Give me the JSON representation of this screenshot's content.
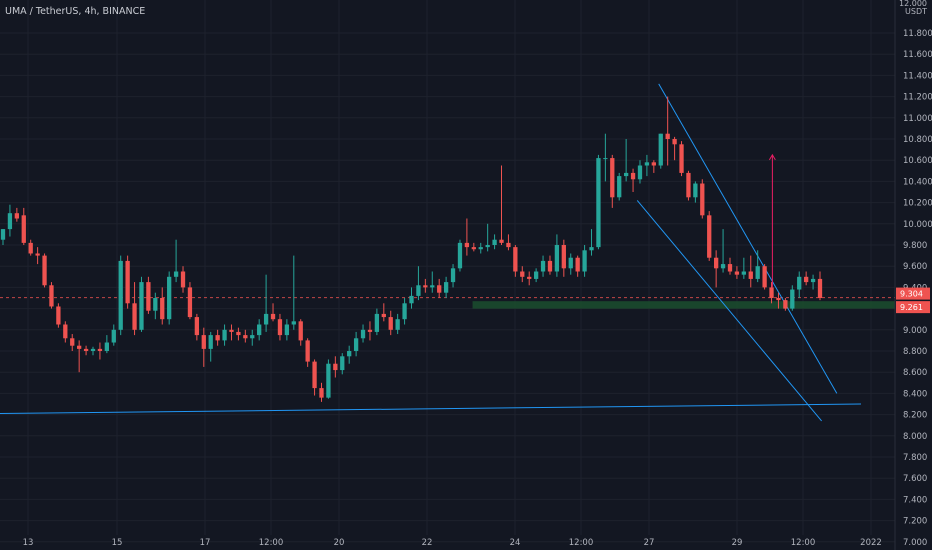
{
  "header": {
    "title": "UMA / TetherUS, 4h, BINANCE",
    "currency": "USDT",
    "top_price": "12.000"
  },
  "colors": {
    "background": "#131722",
    "up": "#26a69a",
    "down": "#ef5350",
    "grid": "#1e222d",
    "trendline": "#2196f3",
    "support_zone": "#1b4d2e",
    "arrow": "#e91e63"
  },
  "chart_data": {
    "type": "candlestick",
    "title": "UMA / TetherUS, 4h, BINANCE",
    "xlabel": "",
    "ylabel": "USDT",
    "ylim": [
      7.0,
      12.0
    ],
    "grid": true,
    "y_ticks": [
      "11.800",
      "11.600",
      "11.400",
      "11.200",
      "11.000",
      "10.800",
      "10.600",
      "10.400",
      "10.200",
      "10.000",
      "9.800",
      "9.600",
      "9.400",
      "9.200",
      "9.000",
      "8.800",
      "8.600",
      "8.400",
      "8.200",
      "8.000",
      "7.800",
      "7.600",
      "7.400",
      "7.200",
      "7.000"
    ],
    "x_ticks": [
      "13",
      "15",
      "17",
      "12:00",
      "20",
      "22",
      "24",
      "12:00",
      "27",
      "29",
      "12:00",
      "2022"
    ],
    "price_labels": [
      {
        "text": "9.304",
        "value": 9.304,
        "color": "#ef5350"
      },
      {
        "text": "9.261",
        "value": 9.261,
        "color": "#ef5350"
      }
    ],
    "candles": [
      [
        9.85,
        9.95,
        9.8,
        9.95
      ],
      [
        9.95,
        10.18,
        9.88,
        10.1
      ],
      [
        10.1,
        10.15,
        10.02,
        10.05
      ],
      [
        10.08,
        10.15,
        9.8,
        9.82
      ],
      [
        9.82,
        9.85,
        9.7,
        9.72
      ],
      [
        9.72,
        9.78,
        9.62,
        9.7
      ],
      [
        9.7,
        9.72,
        9.4,
        9.42
      ],
      [
        9.42,
        9.45,
        9.2,
        9.22
      ],
      [
        9.22,
        9.25,
        9.02,
        9.05
      ],
      [
        9.05,
        9.08,
        8.88,
        8.92
      ],
      [
        8.92,
        8.96,
        8.8,
        8.85
      ],
      [
        8.85,
        8.9,
        8.6,
        8.82
      ],
      [
        8.82,
        8.85,
        8.76,
        8.8
      ],
      [
        8.8,
        8.84,
        8.76,
        8.82
      ],
      [
        8.82,
        8.88,
        8.72,
        8.8
      ],
      [
        8.8,
        8.95,
        8.78,
        8.88
      ],
      [
        8.88,
        9.05,
        8.85,
        9.0
      ],
      [
        9.0,
        9.7,
        8.95,
        9.65
      ],
      [
        9.65,
        9.7,
        9.2,
        9.25
      ],
      [
        9.25,
        9.45,
        8.95,
        9.0
      ],
      [
        9.0,
        9.5,
        8.98,
        9.45
      ],
      [
        9.45,
        9.5,
        9.15,
        9.18
      ],
      [
        9.18,
        9.35,
        9.1,
        9.3
      ],
      [
        9.3,
        9.4,
        9.05,
        9.1
      ],
      [
        9.1,
        9.55,
        9.05,
        9.5
      ],
      [
        9.5,
        9.85,
        9.45,
        9.55
      ],
      [
        9.55,
        9.6,
        9.35,
        9.4
      ],
      [
        9.4,
        9.45,
        9.1,
        9.12
      ],
      [
        9.12,
        9.15,
        8.9,
        8.95
      ],
      [
        8.95,
        9.02,
        8.65,
        8.82
      ],
      [
        8.82,
        8.98,
        8.7,
        8.95
      ],
      [
        8.95,
        9.0,
        8.85,
        8.9
      ],
      [
        8.9,
        9.05,
        8.85,
        9.0
      ],
      [
        9.0,
        9.05,
        8.9,
        8.98
      ],
      [
        8.98,
        9.02,
        8.9,
        8.95
      ],
      [
        8.95,
        9.0,
        8.88,
        8.92
      ],
      [
        8.92,
        9.0,
        8.85,
        8.95
      ],
      [
        8.95,
        9.1,
        8.9,
        9.05
      ],
      [
        9.05,
        9.52,
        8.98,
        9.15
      ],
      [
        9.15,
        9.25,
        9.08,
        9.1
      ],
      [
        9.1,
        9.15,
        8.9,
        8.95
      ],
      [
        8.95,
        9.1,
        8.9,
        9.05
      ],
      [
        9.05,
        9.7,
        9.0,
        9.08
      ],
      [
        9.08,
        9.1,
        8.85,
        8.9
      ],
      [
        8.9,
        8.92,
        8.65,
        8.7
      ],
      [
        8.7,
        8.72,
        8.38,
        8.45
      ],
      [
        8.45,
        8.5,
        8.32,
        8.36
      ],
      [
        8.36,
        8.72,
        8.35,
        8.68
      ],
      [
        8.68,
        8.75,
        8.55,
        8.62
      ],
      [
        8.62,
        8.78,
        8.58,
        8.75
      ],
      [
        8.75,
        8.85,
        8.68,
        8.8
      ],
      [
        8.8,
        8.98,
        8.75,
        8.92
      ],
      [
        8.92,
        9.05,
        8.88,
        9.0
      ],
      [
        9.0,
        9.08,
        8.9,
        8.98
      ],
      [
        8.98,
        9.2,
        8.95,
        9.15
      ],
      [
        9.15,
        9.25,
        9.08,
        9.12
      ],
      [
        9.12,
        9.18,
        8.95,
        9.0
      ],
      [
        9.0,
        9.15,
        8.96,
        9.1
      ],
      [
        9.1,
        9.3,
        9.05,
        9.25
      ],
      [
        9.25,
        9.4,
        9.2,
        9.32
      ],
      [
        9.32,
        9.6,
        9.28,
        9.42
      ],
      [
        9.42,
        9.48,
        9.35,
        9.4
      ],
      [
        9.4,
        9.55,
        9.35,
        9.42
      ],
      [
        9.42,
        9.48,
        9.3,
        9.35
      ],
      [
        9.35,
        9.5,
        9.3,
        9.45
      ],
      [
        9.45,
        9.62,
        9.4,
        9.58
      ],
      [
        9.58,
        9.85,
        9.55,
        9.82
      ],
      [
        9.82,
        10.05,
        9.7,
        9.78
      ],
      [
        9.78,
        9.82,
        9.74,
        9.76
      ],
      [
        9.76,
        9.82,
        9.72,
        9.78
      ],
      [
        9.78,
        10.0,
        9.74,
        9.8
      ],
      [
        9.8,
        9.9,
        9.76,
        9.85
      ],
      [
        9.85,
        10.55,
        9.8,
        9.82
      ],
      [
        9.82,
        9.9,
        9.75,
        9.78
      ],
      [
        9.78,
        9.8,
        9.5,
        9.55
      ],
      [
        9.55,
        9.6,
        9.45,
        9.5
      ],
      [
        9.5,
        9.55,
        9.42,
        9.48
      ],
      [
        9.48,
        9.58,
        9.45,
        9.55
      ],
      [
        9.55,
        9.7,
        9.5,
        9.65
      ],
      [
        9.65,
        9.7,
        9.52,
        9.55
      ],
      [
        9.55,
        9.9,
        9.5,
        9.8
      ],
      [
        9.8,
        9.85,
        9.5,
        9.58
      ],
      [
        9.58,
        9.72,
        9.52,
        9.68
      ],
      [
        9.68,
        9.7,
        9.5,
        9.55
      ],
      [
        9.55,
        9.8,
        9.5,
        9.75
      ],
      [
        9.75,
        9.95,
        9.7,
        9.78
      ],
      [
        9.78,
        10.65,
        9.76,
        10.62
      ],
      [
        10.62,
        10.85,
        10.4,
        10.62
      ],
      [
        10.62,
        10.65,
        10.15,
        10.25
      ],
      [
        10.25,
        10.48,
        10.22,
        10.45
      ],
      [
        10.45,
        10.8,
        10.4,
        10.48
      ],
      [
        10.48,
        10.52,
        10.3,
        10.42
      ],
      [
        10.42,
        10.6,
        10.38,
        10.55
      ],
      [
        10.55,
        10.65,
        10.45,
        10.58
      ],
      [
        10.58,
        10.6,
        10.48,
        10.55
      ],
      [
        10.55,
        10.85,
        10.52,
        10.85
      ],
      [
        10.85,
        11.2,
        10.55,
        10.8
      ],
      [
        10.8,
        10.82,
        10.6,
        10.75
      ],
      [
        10.75,
        10.78,
        10.45,
        10.48
      ],
      [
        10.48,
        10.5,
        10.22,
        10.25
      ],
      [
        10.25,
        10.4,
        10.2,
        10.38
      ],
      [
        10.38,
        10.42,
        10.05,
        10.08
      ],
      [
        10.08,
        10.12,
        9.65,
        9.68
      ],
      [
        9.68,
        9.75,
        9.4,
        9.58
      ],
      [
        9.58,
        9.95,
        9.54,
        9.62
      ],
      [
        9.62,
        9.68,
        9.52,
        9.55
      ],
      [
        9.55,
        9.6,
        9.48,
        9.52
      ],
      [
        9.52,
        9.68,
        9.48,
        9.55
      ],
      [
        9.55,
        9.7,
        9.4,
        9.48
      ],
      [
        9.48,
        9.75,
        9.45,
        9.6
      ],
      [
        9.6,
        9.62,
        9.38,
        9.4
      ],
      [
        9.4,
        9.45,
        9.25,
        9.3
      ],
      [
        9.3,
        9.35,
        9.2,
        9.28
      ],
      [
        9.28,
        9.3,
        9.18,
        9.2
      ],
      [
        9.2,
        9.42,
        9.18,
        9.38
      ],
      [
        9.38,
        9.55,
        9.3,
        9.5
      ],
      [
        9.5,
        9.55,
        9.42,
        9.45
      ],
      [
        9.45,
        9.52,
        9.38,
        9.48
      ],
      [
        9.48,
        9.55,
        9.28,
        9.3
      ]
    ],
    "support_zone": {
      "low": 9.2,
      "high": 9.27
    },
    "trendlines": [
      {
        "name": "channel-upper",
        "from": [
          0.736,
          11.32
        ],
        "to": [
          0.935,
          8.4
        ]
      },
      {
        "name": "channel-lower",
        "from": [
          0.712,
          10.22
        ],
        "to": [
          0.918,
          8.14
        ]
      },
      {
        "name": "long-support",
        "from": [
          0.0,
          8.21
        ],
        "to": [
          0.962,
          8.3
        ]
      }
    ],
    "arrow": {
      "from": [
        0.863,
        9.4
      ],
      "to": [
        0.863,
        10.65
      ]
    }
  }
}
